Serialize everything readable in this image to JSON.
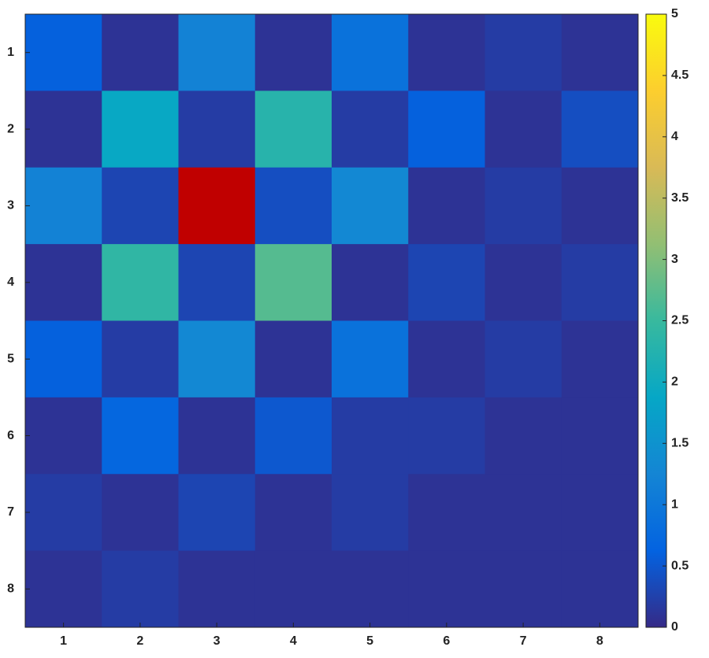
{
  "chart_data": {
    "type": "heatmap",
    "x_categories": [
      "1",
      "2",
      "3",
      "4",
      "5",
      "6",
      "7",
      "8"
    ],
    "y_categories": [
      "1",
      "2",
      "3",
      "4",
      "5",
      "6",
      "7",
      "8"
    ],
    "values": [
      [
        0.6,
        0.1,
        1.2,
        0.1,
        0.9,
        0.1,
        0.2,
        0.1
      ],
      [
        0.1,
        1.9,
        0.2,
        2.3,
        0.2,
        0.6,
        0.1,
        0.4
      ],
      [
        1.2,
        0.3,
        6,
        0.4,
        1.3,
        0.1,
        0.2,
        0.1
      ],
      [
        0.1,
        2.4,
        0.3,
        2.7,
        0.1,
        0.3,
        0.1,
        0.2
      ],
      [
        0.6,
        0.2,
        1.3,
        0.1,
        0.9,
        0.1,
        0.2,
        0.1
      ],
      [
        0.1,
        0.7,
        0.1,
        0.5,
        0.2,
        0.2,
        0.1,
        0.1
      ],
      [
        0.2,
        0.1,
        0.3,
        0.1,
        0.2,
        0.1,
        0.1,
        0.1
      ],
      [
        0.1,
        0.2,
        0.1,
        0.1,
        0.1,
        0.1,
        0.1,
        0.1
      ]
    ],
    "clim": [
      0,
      5
    ],
    "cticks": [
      0,
      0.5,
      1,
      1.5,
      2,
      2.5,
      3,
      3.5,
      4,
      4.5,
      5
    ],
    "colormap": [
      "#352a87",
      "#0363e1",
      "#1485d4",
      "#06a7c6",
      "#38b99e",
      "#92bf73",
      "#d9ba56",
      "#fcce2e",
      "#f9fb0e"
    ],
    "over_color": "#c00000"
  }
}
